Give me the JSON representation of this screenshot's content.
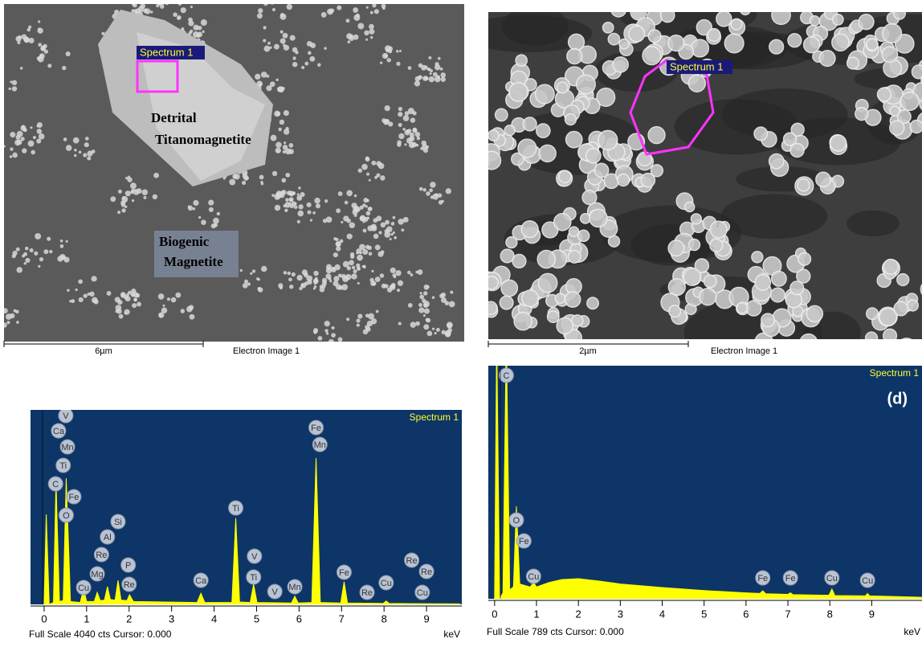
{
  "images": [
    {
      "scale_bar": "6µm",
      "caption": "Electron Image 1",
      "spectrum_label": "Spectrum 1",
      "labels": [
        "Detrital",
        "Titanomagnetite",
        "Biogenic",
        "Magnetite"
      ]
    },
    {
      "scale_bar": "2µm",
      "caption": "Electron Image 1",
      "spectrum_label": "Spectrum 1"
    }
  ],
  "chart_data": [
    {
      "type": "line",
      "title": "Spectrum 1",
      "footer": "Full Scale 4040 cts Cursor: 0.000",
      "x_label": "keV",
      "xlim": [
        -0.32,
        9.83
      ],
      "ylim": [
        0,
        4040
      ],
      "xticks": [
        0,
        1,
        2,
        3,
        4,
        5,
        6,
        7,
        8,
        9
      ],
      "x": [
        0,
        0.05,
        0.12,
        0.22,
        0.28,
        0.36,
        0.45,
        0.52,
        0.62,
        0.85,
        0.93,
        1.0,
        1.18,
        1.25,
        1.32,
        1.42,
        1.49,
        1.56,
        1.67,
        1.74,
        1.81,
        1.95,
        2.01,
        2.1,
        3.6,
        3.69,
        3.78,
        4.42,
        4.51,
        4.6,
        4.85,
        4.93,
        5.01,
        5.82,
        5.9,
        5.98,
        6.3,
        6.4,
        6.5,
        6.98,
        7.06,
        7.14,
        7.98,
        8.05,
        8.12,
        9.8
      ],
      "series": [
        {
          "color": "#ffff00",
          "values": [
            0,
            1870,
            0,
            40,
            2570,
            60,
            80,
            2620,
            60,
            40,
            330,
            60,
            60,
            250,
            80,
            90,
            370,
            100,
            90,
            500,
            90,
            80,
            200,
            60,
            40,
            230,
            40,
            40,
            1790,
            50,
            40,
            420,
            40,
            30,
            170,
            30,
            40,
            3040,
            40,
            30,
            470,
            30,
            20,
            70,
            20,
            10
          ]
        }
      ],
      "annotations": [
        {
          "text": "V",
          "x": 0.51
        },
        {
          "text": "Ca",
          "x": 0.34
        },
        {
          "text": "Mn",
          "x": 0.55
        },
        {
          "text": "Ti",
          "x": 0.45
        },
        {
          "text": "C",
          "x": 0.27
        },
        {
          "text": "Fe",
          "x": 0.7
        },
        {
          "text": "O",
          "x": 0.52
        },
        {
          "text": "Si",
          "x": 1.74
        },
        {
          "text": "Al",
          "x": 1.49
        },
        {
          "text": "Re",
          "x": 1.35
        },
        {
          "text": "P",
          "x": 1.98
        },
        {
          "text": "Mg",
          "x": 1.25
        },
        {
          "text": "Re",
          "x": 2.0
        },
        {
          "text": "Cu",
          "x": 0.93
        },
        {
          "text": "Ca",
          "x": 3.69
        },
        {
          "text": "Ti",
          "x": 4.51
        },
        {
          "text": "V",
          "x": 4.95
        },
        {
          "text": "Ti",
          "x": 4.93
        },
        {
          "text": "V",
          "x": 5.43
        },
        {
          "text": "Mn",
          "x": 5.9
        },
        {
          "text": "Fe",
          "x": 6.4
        },
        {
          "text": "Mn",
          "x": 6.49
        },
        {
          "text": "Fe",
          "x": 7.06
        },
        {
          "text": "Re",
          "x": 7.6
        },
        {
          "text": "Cu",
          "x": 8.05
        },
        {
          "text": "Re",
          "x": 8.65
        },
        {
          "text": "Re",
          "x": 9.0
        },
        {
          "text": "Cu",
          "x": 8.9
        }
      ]
    },
    {
      "type": "line",
      "title": "Spectrum 1",
      "panel_label": "(d)",
      "footer": "Full Scale 789 cts Cursor: 0.000",
      "x_label": "keV",
      "xlim": [
        -0.15,
        10.2
      ],
      "ylim": [
        0,
        789
      ],
      "xticks": [
        0,
        1,
        2,
        3,
        4,
        5,
        6,
        7,
        8,
        9
      ],
      "x": [
        0,
        0.05,
        0.12,
        0.2,
        0.28,
        0.36,
        0.45,
        0.52,
        0.6,
        0.85,
        0.93,
        1.0,
        1.3,
        1.6,
        2.0,
        2.5,
        3.0,
        4.0,
        5.0,
        6.0,
        6.33,
        6.4,
        6.47,
        7.0,
        7.06,
        7.12,
        7.98,
        8.05,
        8.12,
        8.85,
        8.9,
        8.95,
        10.2
      ],
      "series": [
        {
          "color": "#ffff00",
          "values": [
            0,
            900,
            0,
            20,
            900,
            30,
            40,
            313,
            50,
            40,
            55,
            40,
            55,
            65,
            68,
            60,
            50,
            38,
            28,
            20,
            18,
            27,
            17,
            15,
            20,
            14,
            12,
            33,
            11,
            10,
            18,
            10,
            5
          ]
        }
      ],
      "annotations": [
        {
          "text": "C",
          "x": 0.28
        },
        {
          "text": "O",
          "x": 0.52
        },
        {
          "text": "Fe",
          "x": 0.7
        },
        {
          "text": "Cu",
          "x": 0.93
        },
        {
          "text": "Fe",
          "x": 6.4
        },
        {
          "text": "Fe",
          "x": 7.06
        },
        {
          "text": "Cu",
          "x": 8.05
        },
        {
          "text": "Cu",
          "x": 8.9
        }
      ]
    }
  ]
}
